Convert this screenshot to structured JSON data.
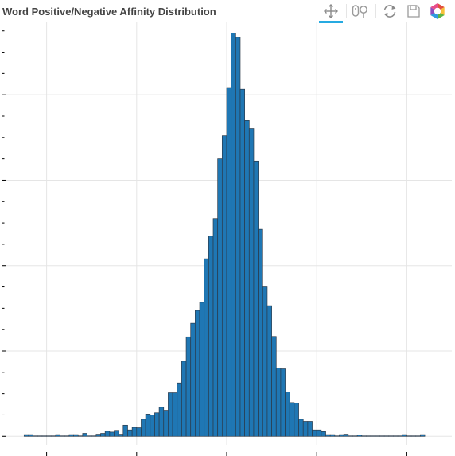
{
  "chart": {
    "title": "Word Positive/Negative Affinity Distribution"
  },
  "toolbar": {
    "tools": [
      {
        "name": "pan-tool",
        "icon": "pan-icon",
        "active": true
      },
      {
        "name": "wheel-zoom-tool",
        "icon": "wheel-zoom-icon",
        "active": false
      },
      {
        "name": "reset-tool",
        "icon": "reset-icon",
        "active": false
      },
      {
        "name": "save-tool",
        "icon": "save-icon",
        "active": false
      },
      {
        "name": "bokeh-logo",
        "icon": "bokeh-logo-icon",
        "active": false
      }
    ]
  },
  "colors": {
    "bar_fill": "#1f77b4",
    "bar_stroke": "#2b3a4a",
    "grid": "#e5e5e5",
    "axis": "#000000",
    "active_tool": "#26aae1"
  },
  "chart_data": {
    "type": "bar",
    "title": "Word Positive/Negative Affinity Distribution",
    "xlabel": "",
    "ylabel": "",
    "tick_labels_visible": false,
    "grid": true,
    "xlim": [
      -5.0,
      5.0
    ],
    "ylim": [
      -0.2,
      9.7
    ],
    "bin_start": -4.5,
    "bin_width": 0.1,
    "values": [
      0.04,
      0.04,
      0.01,
      0.01,
      0.01,
      0.01,
      0.01,
      0.04,
      0.01,
      0.01,
      0.04,
      0.04,
      0.01,
      0.07,
      0.01,
      0.01,
      0.05,
      0.07,
      0.12,
      0.1,
      0.14,
      0.05,
      0.26,
      0.15,
      0.21,
      0.2,
      0.4,
      0.52,
      0.5,
      0.55,
      0.68,
      0.61,
      1.02,
      1.02,
      1.25,
      1.76,
      2.33,
      2.65,
      2.95,
      3.14,
      4.16,
      4.69,
      5.1,
      6.5,
      7.04,
      8.17,
      9.45,
      9.35,
      8.13,
      7.4,
      7.21,
      6.45,
      4.85,
      3.5,
      3.06,
      2.34,
      1.6,
      1.58,
      1.04,
      0.79,
      0.78,
      0.4,
      0.35,
      0.35,
      0.15,
      0.15,
      0.11,
      0.04,
      0.04,
      0.01,
      0.04,
      0.05,
      0.01,
      0.01,
      0.03,
      0.01,
      0.01,
      0.01,
      0.01,
      0.01,
      0.01,
      0.01,
      0.01,
      0.01,
      0.04,
      0.01,
      0.01,
      0.01,
      0.04
    ]
  }
}
